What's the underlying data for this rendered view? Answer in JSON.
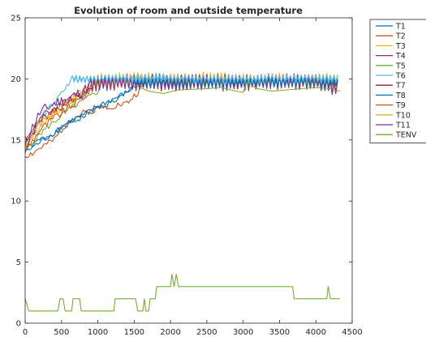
{
  "chart_data": {
    "type": "line",
    "title": "Evolution of room and outside temperature",
    "xlabel": "",
    "ylabel": "",
    "xlim": [
      0,
      4500
    ],
    "ylim": [
      0,
      25
    ],
    "x_ticks": [
      0,
      500,
      1000,
      1500,
      2000,
      2500,
      3000,
      3500,
      4000,
      4500
    ],
    "y_ticks": [
      0,
      5,
      10,
      15,
      20,
      25
    ],
    "grid": false,
    "legend_position": "outside-top-right",
    "series": [
      {
        "name": "T1",
        "color": "#0072bd",
        "shape": "room",
        "start": 14.2,
        "rise_end": 1500,
        "plateau": 19.7,
        "amp": 0.3,
        "seed": 1,
        "points": [
          [
            0,
            14.2
          ],
          [
            100,
            14.6
          ],
          [
            200,
            15.0
          ],
          [
            400,
            15.6
          ],
          [
            600,
            16.3
          ],
          [
            800,
            16.9
          ],
          [
            1000,
            17.6
          ],
          [
            1200,
            18.1
          ],
          [
            1400,
            18.8
          ],
          [
            1500,
            19.5
          ],
          [
            2000,
            19.7
          ],
          [
            2500,
            19.8
          ],
          [
            3000,
            19.6
          ],
          [
            3500,
            19.8
          ],
          [
            4000,
            19.7
          ],
          [
            4300,
            19.6
          ]
        ]
      },
      {
        "name": "T2",
        "color": "#d95319",
        "shape": "room",
        "start": 13.7,
        "rise_end": 1650,
        "plateau": 19.8,
        "amp": 0.35,
        "seed": 2,
        "points": [
          [
            0,
            13.7
          ],
          [
            100,
            13.9
          ],
          [
            200,
            14.3
          ],
          [
            400,
            15.0
          ],
          [
            600,
            16.6
          ],
          [
            800,
            17.2
          ],
          [
            1000,
            17.6
          ],
          [
            1200,
            17.8
          ],
          [
            1400,
            18.0
          ],
          [
            1600,
            19.2
          ],
          [
            1700,
            19.8
          ],
          [
            2000,
            19.9
          ],
          [
            2500,
            19.8
          ],
          [
            3000,
            19.8
          ],
          [
            3500,
            19.9
          ],
          [
            4000,
            19.8
          ],
          [
            4300,
            19.7
          ]
        ]
      },
      {
        "name": "T3",
        "color": "#edb120",
        "shape": "room",
        "start": 14.5,
        "rise_end": 950,
        "plateau": 19.9,
        "amp": 0.45,
        "seed": 3,
        "points": [
          [
            0,
            14.5
          ],
          [
            200,
            16.0
          ],
          [
            400,
            17.2
          ],
          [
            600,
            18.0
          ],
          [
            800,
            18.8
          ],
          [
            950,
            19.7
          ],
          [
            1500,
            20.0
          ],
          [
            2000,
            19.9
          ],
          [
            2500,
            19.8
          ],
          [
            3000,
            19.9
          ],
          [
            3500,
            19.9
          ],
          [
            4000,
            19.9
          ],
          [
            4300,
            19.9
          ]
        ]
      },
      {
        "name": "T4",
        "color": "#7e2f8e",
        "shape": "room",
        "start": 14.8,
        "rise_end": 900,
        "plateau": 19.7,
        "amp": 0.45,
        "seed": 4,
        "points": [
          [
            0,
            14.8
          ],
          [
            200,
            16.8
          ],
          [
            400,
            17.6
          ],
          [
            600,
            18.2
          ],
          [
            800,
            18.8
          ],
          [
            900,
            19.6
          ],
          [
            1500,
            19.8
          ],
          [
            2000,
            19.6
          ],
          [
            2500,
            19.7
          ],
          [
            3000,
            19.6
          ],
          [
            3500,
            19.8
          ],
          [
            4000,
            19.7
          ],
          [
            4300,
            19.5
          ]
        ]
      },
      {
        "name": "T5",
        "color": "#77ac30",
        "shape": "room",
        "start": 14.0,
        "rise_end": 1050,
        "plateau": 19.8,
        "amp": 0.3,
        "seed": 5,
        "points": [
          [
            0,
            14.0
          ],
          [
            200,
            15.5
          ],
          [
            400,
            16.5
          ],
          [
            600,
            17.5
          ],
          [
            800,
            18.2
          ],
          [
            1000,
            19.0
          ],
          [
            1050,
            19.7
          ],
          [
            1500,
            19.8
          ],
          [
            2000,
            19.8
          ],
          [
            2500,
            19.8
          ],
          [
            3000,
            19.7
          ],
          [
            3500,
            19.8
          ],
          [
            4000,
            19.8
          ],
          [
            4300,
            19.7
          ]
        ]
      },
      {
        "name": "T6",
        "color": "#4dbeee",
        "shape": "room",
        "start": 14.3,
        "rise_end": 650,
        "plateau": 20.0,
        "amp": 0.3,
        "seed": 6,
        "points": [
          [
            0,
            14.3
          ],
          [
            150,
            16.0
          ],
          [
            300,
            17.4
          ],
          [
            450,
            18.4
          ],
          [
            550,
            19.2
          ],
          [
            650,
            20.0
          ],
          [
            1000,
            19.9
          ],
          [
            1500,
            20.2
          ],
          [
            2000,
            20.1
          ],
          [
            2500,
            20.0
          ],
          [
            3000,
            20.0
          ],
          [
            3500,
            20.0
          ],
          [
            4000,
            20.1
          ],
          [
            4300,
            20.0
          ]
        ]
      },
      {
        "name": "T7",
        "color": "#a2142f",
        "shape": "room",
        "start": 14.5,
        "rise_end": 950,
        "plateau": 19.8,
        "amp": 0.5,
        "seed": 7,
        "points": [
          [
            0,
            14.5
          ],
          [
            200,
            16.6
          ],
          [
            400,
            17.5
          ],
          [
            600,
            18.1
          ],
          [
            800,
            18.8
          ],
          [
            950,
            19.6
          ],
          [
            1500,
            19.8
          ],
          [
            2000,
            19.7
          ],
          [
            2500,
            19.8
          ],
          [
            3000,
            19.7
          ],
          [
            3500,
            19.8
          ],
          [
            4000,
            19.7
          ],
          [
            4300,
            19.5
          ]
        ]
      },
      {
        "name": "T8",
        "color": "#0072bd",
        "shape": "room",
        "start": 14.0,
        "rise_end": 1550,
        "plateau": 19.8,
        "amp": 0.3,
        "seed": 8,
        "points": [
          [
            0,
            14.0
          ],
          [
            200,
            14.8
          ],
          [
            400,
            15.6
          ],
          [
            600,
            16.5
          ],
          [
            800,
            17.0
          ],
          [
            1000,
            17.8
          ],
          [
            1200,
            18.3
          ],
          [
            1400,
            18.9
          ],
          [
            1550,
            19.6
          ],
          [
            2000,
            19.8
          ],
          [
            2500,
            19.8
          ],
          [
            3000,
            19.8
          ],
          [
            3500,
            19.8
          ],
          [
            4000,
            19.8
          ],
          [
            4300,
            19.7
          ]
        ]
      },
      {
        "name": "T9",
        "color": "#d95319",
        "shape": "room",
        "start": 14.1,
        "rise_end": 950,
        "plateau": 19.9,
        "amp": 0.4,
        "seed": 9,
        "points": [
          [
            0,
            14.1
          ],
          [
            200,
            15.8
          ],
          [
            400,
            16.8
          ],
          [
            600,
            17.6
          ],
          [
            800,
            18.5
          ],
          [
            950,
            19.5
          ],
          [
            1500,
            19.9
          ],
          [
            2000,
            19.9
          ],
          [
            2500,
            20.0
          ],
          [
            3000,
            19.9
          ],
          [
            3500,
            20.0
          ],
          [
            4000,
            19.9
          ],
          [
            4300,
            19.9
          ]
        ]
      },
      {
        "name": "T10",
        "color": "#edb120",
        "shape": "room",
        "start": 14.6,
        "rise_end": 900,
        "plateau": 19.9,
        "amp": 0.5,
        "seed": 10,
        "points": [
          [
            0,
            14.6
          ],
          [
            200,
            16.4
          ],
          [
            400,
            17.4
          ],
          [
            600,
            18.2
          ],
          [
            800,
            19.0
          ],
          [
            900,
            19.8
          ],
          [
            1500,
            20.0
          ],
          [
            2000,
            19.9
          ],
          [
            2500,
            20.0
          ],
          [
            3000,
            19.9
          ],
          [
            3500,
            19.9
          ],
          [
            4000,
            19.9
          ],
          [
            4300,
            19.8
          ]
        ]
      },
      {
        "name": "T11",
        "color": "#7e2f8e",
        "shape": "room",
        "start": 14.9,
        "rise_end": 900,
        "plateau": 19.7,
        "amp": 0.6,
        "seed": 11,
        "points": [
          [
            0,
            14.9
          ],
          [
            200,
            17.2
          ],
          [
            400,
            18.0
          ],
          [
            600,
            18.4
          ],
          [
            800,
            19.0
          ],
          [
            900,
            19.6
          ],
          [
            1500,
            19.7
          ],
          [
            2000,
            19.7
          ],
          [
            2500,
            19.8
          ],
          [
            3000,
            19.6
          ],
          [
            3500,
            19.8
          ],
          [
            4000,
            19.7
          ],
          [
            4300,
            19.3
          ]
        ]
      },
      {
        "name": "TENV",
        "color": "#77ac30",
        "shape": "plain",
        "points": [
          [
            0,
            2
          ],
          [
            50,
            1
          ],
          [
            450,
            1
          ],
          [
            480,
            2
          ],
          [
            520,
            2
          ],
          [
            550,
            1
          ],
          [
            640,
            1
          ],
          [
            660,
            2
          ],
          [
            750,
            2
          ],
          [
            770,
            1
          ],
          [
            1220,
            1
          ],
          [
            1240,
            2
          ],
          [
            1520,
            2
          ],
          [
            1550,
            1
          ],
          [
            1620,
            1
          ],
          [
            1640,
            2
          ],
          [
            1660,
            1
          ],
          [
            1700,
            1
          ],
          [
            1720,
            2
          ],
          [
            1790,
            2
          ],
          [
            1810,
            3
          ],
          [
            2000,
            3
          ],
          [
            2020,
            4
          ],
          [
            2050,
            3
          ],
          [
            2080,
            4
          ],
          [
            2110,
            3
          ],
          [
            3680,
            3
          ],
          [
            3700,
            2
          ],
          [
            4150,
            2
          ],
          [
            4170,
            3
          ],
          [
            4200,
            2
          ],
          [
            4330,
            2
          ]
        ]
      }
    ],
    "overlay_series": [
      {
        "name": "T1",
        "color": "#0072bd",
        "from": 1500,
        "to": 4300,
        "plateau": 19.7,
        "amp": 0.3,
        "seed": 1
      },
      {
        "name": "T6",
        "color": "#4dbeee",
        "from": 650,
        "to": 4300,
        "plateau": 20.0,
        "amp": 0.3,
        "seed": 6
      },
      {
        "name": "TENV",
        "color": "#77ac30",
        "from": 1500,
        "to": 4330,
        "points": [
          [
            1500,
            19.5
          ],
          [
            1700,
            19.0
          ],
          [
            1900,
            18.8
          ],
          [
            2100,
            19.1
          ],
          [
            2500,
            19.2
          ],
          [
            2700,
            19.3
          ],
          [
            2900,
            19.0
          ],
          [
            3000,
            18.9
          ],
          [
            3050,
            19.7
          ],
          [
            3200,
            19.2
          ],
          [
            3400,
            19.0
          ],
          [
            3600,
            19.1
          ],
          [
            3800,
            19.2
          ],
          [
            4000,
            19.3
          ],
          [
            4200,
            19.2
          ],
          [
            4330,
            19.0
          ]
        ]
      }
    ]
  }
}
